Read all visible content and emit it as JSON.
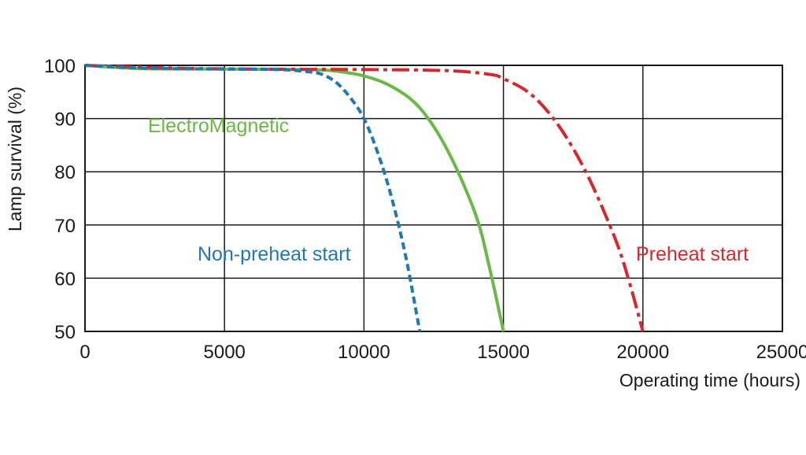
{
  "chart_data": {
    "type": "line",
    "title": "",
    "xlabel": "Operating time (hours)",
    "ylabel": "Lamp survival  (%)",
    "xlim": [
      0,
      25000
    ],
    "ylim": [
      50,
      100
    ],
    "x_ticks": [
      "0",
      "5000",
      "10000",
      "15000",
      "20000",
      "25000"
    ],
    "y_ticks": [
      "50",
      "60",
      "70",
      "80",
      "90",
      "100"
    ],
    "grid": true,
    "legend": "inline labels",
    "series": [
      {
        "name": "Non-preheat start",
        "color": "#1f77b4",
        "line_style": "dashed",
        "points": [
          [
            0,
            100
          ],
          [
            2000,
            99.5
          ],
          [
            5000,
            99.3
          ],
          [
            7000,
            99.2
          ],
          [
            8000,
            98.8
          ],
          [
            8500,
            98.3
          ],
          [
            9000,
            96.8
          ],
          [
            9500,
            94.0
          ],
          [
            10000,
            90.0
          ],
          [
            10500,
            83.5
          ],
          [
            11000,
            75.0
          ],
          [
            11500,
            64.0
          ],
          [
            12000,
            50.0
          ]
        ]
      },
      {
        "name": "ElectroMagnetic",
        "color": "#6ab845",
        "line_style": "solid",
        "points": [
          [
            0,
            100
          ],
          [
            2000,
            99.4
          ],
          [
            5000,
            99.3
          ],
          [
            8000,
            99.2
          ],
          [
            9000,
            98.9
          ],
          [
            10000,
            98.0
          ],
          [
            11000,
            96.0
          ],
          [
            12000,
            92.0
          ],
          [
            13000,
            84.0
          ],
          [
            14000,
            72.0
          ],
          [
            14500,
            62.0
          ],
          [
            15000,
            50.0
          ]
        ]
      },
      {
        "name": "Preheat start",
        "color": "#d9262c",
        "line_style": "dash-dot",
        "points": [
          [
            0,
            100
          ],
          [
            3000,
            99.5
          ],
          [
            6000,
            99.3
          ],
          [
            10000,
            99.2
          ],
          [
            13000,
            99.0
          ],
          [
            14500,
            98.3
          ],
          [
            15000,
            97.5
          ],
          [
            16000,
            94.5
          ],
          [
            17000,
            88.5
          ],
          [
            18000,
            79.5
          ],
          [
            19000,
            67.5
          ],
          [
            19500,
            59.5
          ],
          [
            20000,
            50.0
          ]
        ]
      }
    ]
  }
}
